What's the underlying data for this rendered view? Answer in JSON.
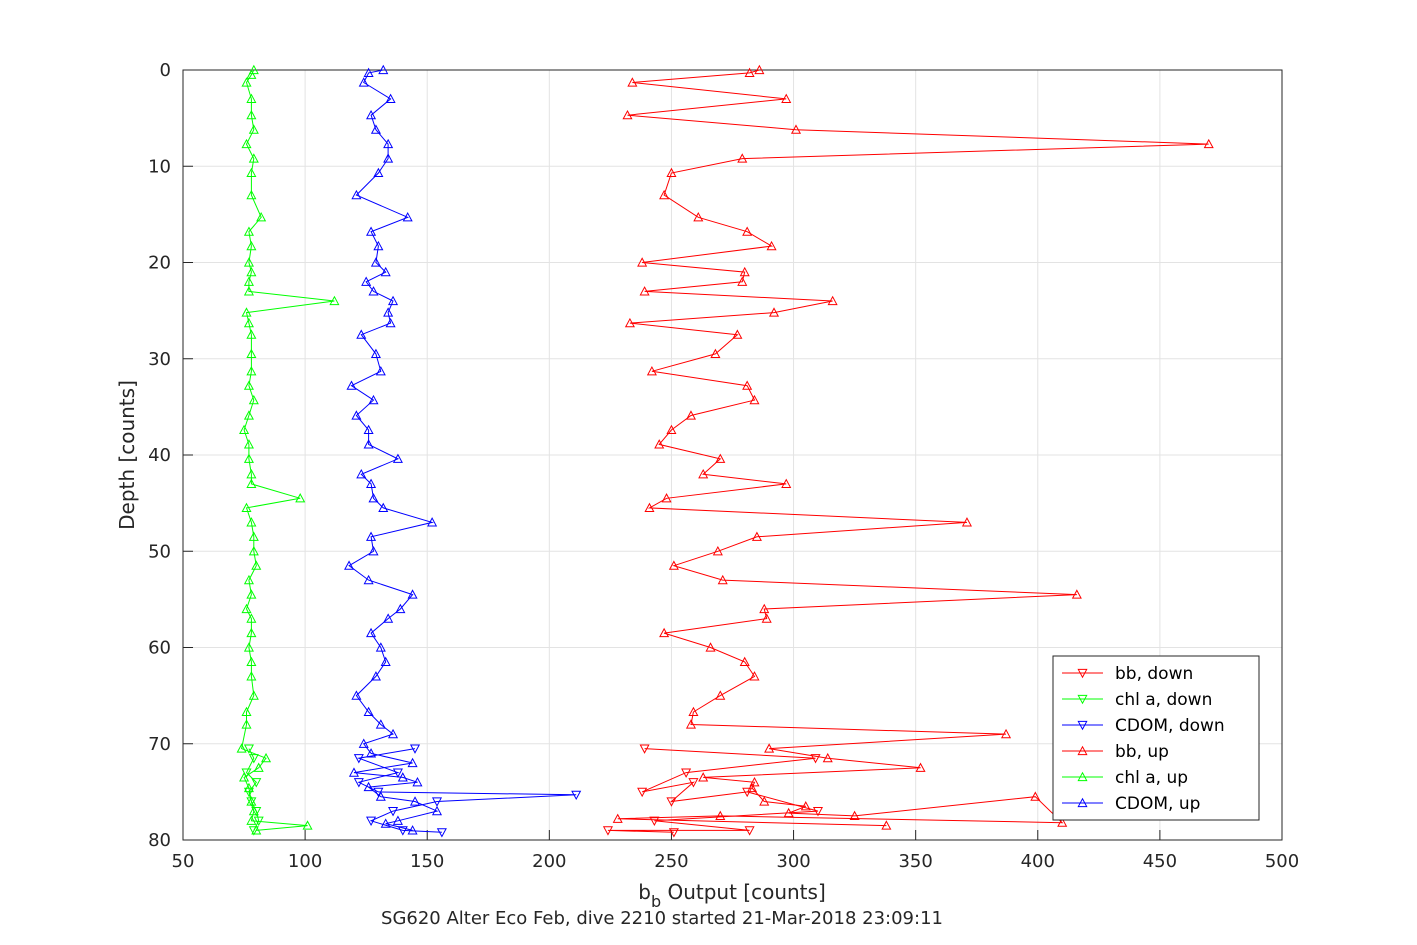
{
  "chart_data": {
    "type": "line",
    "xlabel_main": "b",
    "xlabel_sub": "b",
    "xlabel_rest": " Output [counts]",
    "ylabel": "Depth [counts]",
    "caption": "SG620 Alter Eco Feb, dive 2210 started 21-Mar-2018 23:09:11",
    "xlim": [
      50,
      500
    ],
    "ylim": [
      0,
      80
    ],
    "y_reversed": true,
    "grid": true,
    "legend_position": "bottom-right",
    "x_ticks": [
      "50",
      "100",
      "150",
      "200",
      "250",
      "300",
      "350",
      "400",
      "450",
      "500"
    ],
    "y_ticks": [
      "0",
      "10",
      "20",
      "30",
      "40",
      "50",
      "60",
      "70",
      "80"
    ],
    "series": [
      {
        "name": "bb, down",
        "color": "#ff0000",
        "marker": "triangle-down",
        "points": [
          [
            239,
            70.5
          ],
          [
            309,
            71.5
          ],
          [
            256,
            73
          ],
          [
            238,
            75
          ],
          [
            259,
            74
          ],
          [
            250,
            76
          ],
          [
            281,
            75
          ],
          [
            310,
            77
          ],
          [
            243,
            78
          ],
          [
            282,
            79
          ],
          [
            224,
            79
          ],
          [
            251,
            79.2
          ]
        ]
      },
      {
        "name": "chl a, down",
        "color": "#00ff00",
        "marker": "triangle-down",
        "points": [
          [
            77,
            70.5
          ],
          [
            79,
            71.5
          ],
          [
            76,
            73
          ],
          [
            80,
            74
          ],
          [
            77,
            75
          ],
          [
            78,
            76
          ],
          [
            80,
            77
          ],
          [
            81,
            78
          ],
          [
            79,
            79
          ]
        ]
      },
      {
        "name": "CDOM, down",
        "color": "#0000ff",
        "marker": "triangle-down",
        "points": [
          [
            145,
            70.5
          ],
          [
            122,
            71.5
          ],
          [
            138,
            73
          ],
          [
            122,
            74
          ],
          [
            130,
            75
          ],
          [
            211,
            75.3
          ],
          [
            154,
            76
          ],
          [
            136,
            77
          ],
          [
            127,
            78
          ],
          [
            140,
            79
          ],
          [
            156,
            79.2
          ]
        ]
      },
      {
        "name": "bb, up",
        "color": "#ff0000",
        "marker": "triangle-up",
        "points": [
          [
            286,
            0
          ],
          [
            282,
            0.3
          ],
          [
            234,
            1.3
          ],
          [
            297,
            3
          ],
          [
            232,
            4.7
          ],
          [
            301,
            6.2
          ],
          [
            470,
            7.7
          ],
          [
            279,
            9.2
          ],
          [
            250,
            10.7
          ],
          [
            247,
            13
          ],
          [
            261,
            15.3
          ],
          [
            281,
            16.8
          ],
          [
            291,
            18.3
          ],
          [
            238,
            20
          ],
          [
            280,
            21
          ],
          [
            279,
            22
          ],
          [
            239,
            23
          ],
          [
            316,
            24
          ],
          [
            292,
            25.2
          ],
          [
            233,
            26.3
          ],
          [
            277,
            27.5
          ],
          [
            268,
            29.5
          ],
          [
            242,
            31.3
          ],
          [
            281,
            32.8
          ],
          [
            284,
            34.3
          ],
          [
            258,
            35.9
          ],
          [
            250,
            37.4
          ],
          [
            245,
            38.9
          ],
          [
            270,
            40.4
          ],
          [
            263,
            42
          ],
          [
            297,
            43
          ],
          [
            248,
            44.5
          ],
          [
            241,
            45.5
          ],
          [
            371,
            47
          ],
          [
            285,
            48.5
          ],
          [
            269,
            50
          ],
          [
            251,
            51.5
          ],
          [
            271,
            53
          ],
          [
            416,
            54.5
          ],
          [
            288,
            56
          ],
          [
            289,
            57
          ],
          [
            247,
            58.5
          ],
          [
            266,
            60
          ],
          [
            280,
            61.5
          ],
          [
            284,
            63
          ],
          [
            270,
            65
          ],
          [
            259,
            66.7
          ],
          [
            258,
            68
          ],
          [
            387,
            69
          ],
          [
            290,
            70.5
          ],
          [
            314,
            71.5
          ],
          [
            352,
            72.5
          ],
          [
            263,
            73.5
          ],
          [
            284,
            74
          ],
          [
            283,
            74.6
          ],
          [
            288,
            76
          ],
          [
            305,
            76.5
          ],
          [
            298,
            77.2
          ],
          [
            325,
            77.5
          ],
          [
            399,
            75.5
          ],
          [
            410,
            78.2
          ],
          [
            270,
            77.5
          ],
          [
            228,
            77.8
          ],
          [
            338,
            78.5
          ]
        ]
      },
      {
        "name": "chl a, up",
        "color": "#00ff00",
        "marker": "triangle-up",
        "points": [
          [
            79,
            0
          ],
          [
            78,
            0.5
          ],
          [
            76,
            1.3
          ],
          [
            78,
            3
          ],
          [
            78,
            4.7
          ],
          [
            79,
            6.2
          ],
          [
            76,
            7.7
          ],
          [
            79,
            9.2
          ],
          [
            78,
            10.7
          ],
          [
            78,
            13
          ],
          [
            82,
            15.3
          ],
          [
            77,
            16.8
          ],
          [
            78,
            18.3
          ],
          [
            77,
            20
          ],
          [
            78,
            21
          ],
          [
            77,
            22
          ],
          [
            77,
            23
          ],
          [
            112,
            24
          ],
          [
            76,
            25.2
          ],
          [
            77,
            26.3
          ],
          [
            78,
            27.5
          ],
          [
            78,
            29.5
          ],
          [
            78,
            31.3
          ],
          [
            77,
            32.8
          ],
          [
            79,
            34.3
          ],
          [
            77,
            35.9
          ],
          [
            75,
            37.4
          ],
          [
            77,
            38.9
          ],
          [
            77,
            40.4
          ],
          [
            78,
            42
          ],
          [
            78,
            43
          ],
          [
            98,
            44.5
          ],
          [
            76,
            45.5
          ],
          [
            78,
            47
          ],
          [
            79,
            48.5
          ],
          [
            79,
            50
          ],
          [
            80,
            51.5
          ],
          [
            77,
            53
          ],
          [
            78,
            54.5
          ],
          [
            76,
            56
          ],
          [
            78,
            57
          ],
          [
            78,
            58.5
          ],
          [
            77,
            60
          ],
          [
            78,
            61.5
          ],
          [
            78,
            63
          ],
          [
            79,
            65
          ],
          [
            76,
            66.7
          ],
          [
            76,
            68
          ],
          [
            74,
            70.5
          ],
          [
            84,
            71.5
          ],
          [
            81,
            72.5
          ],
          [
            75,
            73.5
          ],
          [
            77,
            74.6
          ],
          [
            78,
            76
          ],
          [
            79,
            77
          ],
          [
            78,
            78
          ],
          [
            101,
            78.5
          ],
          [
            80,
            79
          ]
        ]
      },
      {
        "name": "CDOM, up",
        "color": "#0000ff",
        "marker": "triangle-up",
        "points": [
          [
            132,
            0
          ],
          [
            126,
            0.3
          ],
          [
            124,
            1.3
          ],
          [
            135,
            3
          ],
          [
            127,
            4.7
          ],
          [
            129,
            6.2
          ],
          [
            134,
            7.7
          ],
          [
            134,
            9.2
          ],
          [
            130,
            10.7
          ],
          [
            121,
            13
          ],
          [
            142,
            15.3
          ],
          [
            127,
            16.8
          ],
          [
            130,
            18.3
          ],
          [
            129,
            20
          ],
          [
            133,
            21
          ],
          [
            125,
            22
          ],
          [
            128,
            23
          ],
          [
            136,
            24
          ],
          [
            134,
            25.2
          ],
          [
            135,
            26.3
          ],
          [
            123,
            27.5
          ],
          [
            129,
            29.5
          ],
          [
            131,
            31.3
          ],
          [
            119,
            32.8
          ],
          [
            128,
            34.3
          ],
          [
            121,
            35.9
          ],
          [
            126,
            37.4
          ],
          [
            126,
            38.9
          ],
          [
            138,
            40.4
          ],
          [
            123,
            42
          ],
          [
            127,
            43
          ],
          [
            128,
            44.5
          ],
          [
            132,
            45.5
          ],
          [
            152,
            47
          ],
          [
            127,
            48.5
          ],
          [
            128,
            50
          ],
          [
            118,
            51.5
          ],
          [
            126,
            53
          ],
          [
            144,
            54.5
          ],
          [
            139,
            56
          ],
          [
            134,
            57
          ],
          [
            127,
            58.5
          ],
          [
            131,
            60
          ],
          [
            133,
            61.5
          ],
          [
            129,
            63
          ],
          [
            121,
            65
          ],
          [
            126,
            66.7
          ],
          [
            131,
            68
          ],
          [
            136,
            69
          ],
          [
            124,
            70
          ],
          [
            127,
            71
          ],
          [
            144,
            72
          ],
          [
            120,
            73
          ],
          [
            140,
            73.5
          ],
          [
            146,
            74
          ],
          [
            126,
            74.5
          ],
          [
            131,
            75.5
          ],
          [
            145,
            76
          ],
          [
            154,
            77
          ],
          [
            138,
            78
          ],
          [
            133,
            78.3
          ],
          [
            144,
            79
          ]
        ]
      }
    ]
  }
}
